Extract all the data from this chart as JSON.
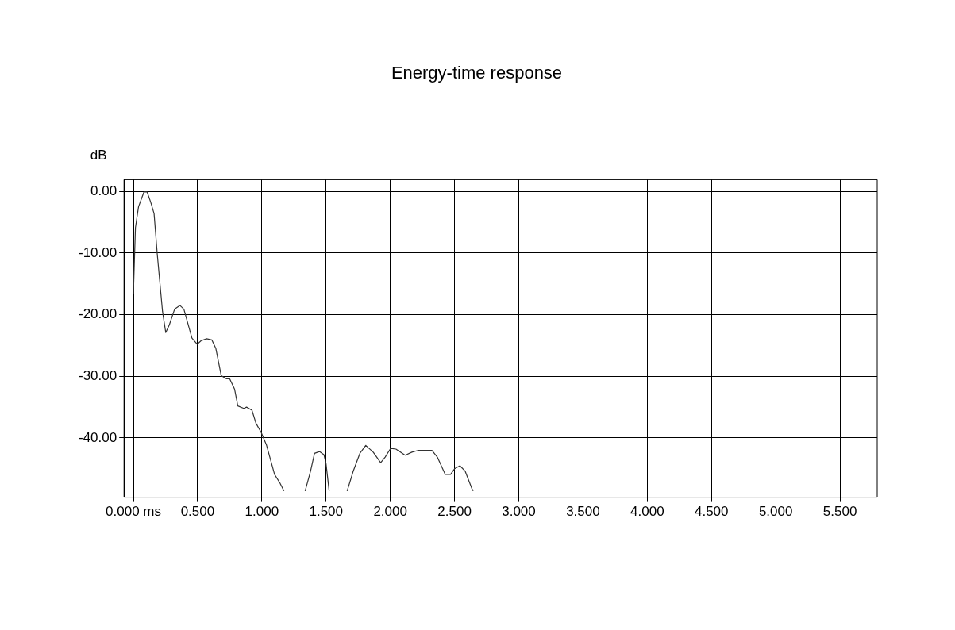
{
  "chart_data": {
    "type": "line",
    "title": "Energy-time response",
    "ylabel": "dB",
    "series": [
      {
        "color": "#333333",
        "x": [
          0,
          0.016,
          0.04,
          0.082,
          0.107,
          0.134,
          0.161,
          0.186,
          0.227,
          0.252,
          0.279,
          0.321,
          0.362,
          0.393,
          0.456,
          0.497,
          0.528,
          0.57,
          0.611,
          0.642,
          0.684,
          0.725,
          0.75,
          0.788,
          0.813,
          0.86,
          0.881,
          0.923,
          0.954,
          0.995,
          1.037,
          1.099,
          1.141,
          1.172,
          1.25,
          1.337,
          1.379,
          1.41,
          1.448,
          1.483,
          1.5,
          1.524,
          1.6,
          1.664,
          1.711,
          1.763,
          1.809,
          1.867,
          1.925,
          1.96,
          2.002,
          2.044,
          2.116,
          2.168,
          2.22,
          2.282,
          2.324,
          2.366,
          2.427,
          2.469,
          2.5,
          2.542,
          2.583,
          2.635,
          2.645
        ],
        "values": [
          -16.6,
          -5.9,
          -2.5,
          -0.1,
          -0.1,
          -1.7,
          -3.6,
          -10.2,
          -19.5,
          -22.9,
          -21.7,
          -19.1,
          -18.5,
          -19.1,
          -23.8,
          -24.8,
          -24.2,
          -23.9,
          -24.1,
          -25.5,
          -29.9,
          -30.4,
          -30.4,
          -32.1,
          -34.8,
          -35.2,
          -35.0,
          -35.5,
          -37.6,
          -39.1,
          -41.2,
          -45.9,
          -47.3,
          -48.6,
          null,
          -48.6,
          -45.4,
          -42.5,
          -42.2,
          -42.7,
          -44.2,
          -48.6,
          null,
          -48.6,
          -45.4,
          -42.5,
          -41.2,
          -42.3,
          -44.0,
          -43.1,
          -41.7,
          -41.8,
          -42.8,
          -42.3,
          -42.0,
          -42.0,
          -42.0,
          -43.1,
          -45.9,
          -45.9,
          -45.0,
          -44.5,
          -45.4,
          -48.2,
          -48.6
        ]
      }
    ],
    "xlim": [
      -0.073,
      5.79
    ],
    "ylim": [
      -49.6,
      1.9
    ],
    "xticks": [
      {
        "value": 0,
        "label": "0.000 ms"
      },
      {
        "value": 0.5,
        "label": "0.500"
      },
      {
        "value": 1,
        "label": "1.000"
      },
      {
        "value": 1.5,
        "label": "1.500"
      },
      {
        "value": 2,
        "label": "2.000"
      },
      {
        "value": 2.5,
        "label": "2.500"
      },
      {
        "value": 3,
        "label": "3.000"
      },
      {
        "value": 3.5,
        "label": "3.500"
      },
      {
        "value": 4,
        "label": "4.000"
      },
      {
        "value": 4.5,
        "label": "4.500"
      },
      {
        "value": 5,
        "label": "5.000"
      },
      {
        "value": 5.5,
        "label": "5.500"
      }
    ],
    "yticks": [
      {
        "value": 0,
        "label": "0.00"
      },
      {
        "value": -10,
        "label": "-10.00"
      },
      {
        "value": -20,
        "label": "-20.00"
      },
      {
        "value": -30,
        "label": "-30.00"
      },
      {
        "value": -40,
        "label": "-40.00"
      }
    ],
    "grid": true,
    "marker": "none",
    "line_style": "solid",
    "legend": false
  }
}
